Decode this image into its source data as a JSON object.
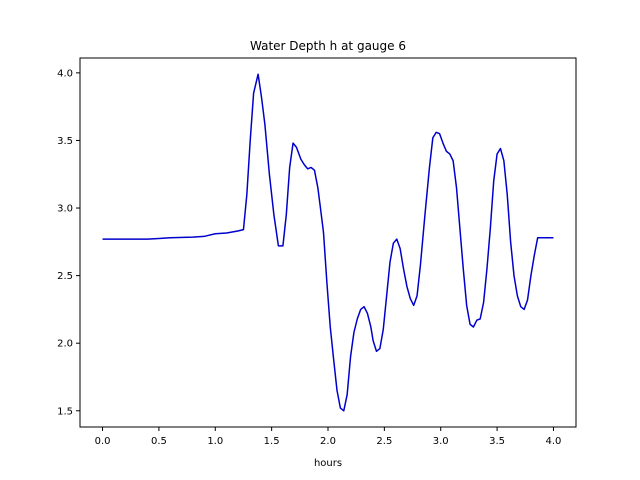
{
  "chart_data": {
    "type": "line",
    "title": "Water Depth h at gauge 6",
    "xlabel": "hours",
    "ylabel": "",
    "xlim": [
      -0.2,
      4.2
    ],
    "ylim": [
      1.38,
      4.11
    ],
    "xticks": [
      0.0,
      0.5,
      1.0,
      1.5,
      2.0,
      2.5,
      3.0,
      3.5,
      4.0
    ],
    "xtick_labels": [
      "0.0",
      "0.5",
      "1.0",
      "1.5",
      "2.0",
      "2.5",
      "3.0",
      "3.5",
      "4.0"
    ],
    "yticks": [
      1.5,
      2.0,
      2.5,
      3.0,
      3.5,
      4.0
    ],
    "ytick_labels": [
      "1.5",
      "2.0",
      "2.5",
      "3.0",
      "3.5",
      "4.0"
    ],
    "grid": false,
    "series": [
      {
        "color": "#0000cc",
        "x": [
          0.0,
          0.2,
          0.4,
          0.5,
          0.6,
          0.8,
          0.9,
          1.0,
          1.1,
          1.2,
          1.25,
          1.28,
          1.31,
          1.34,
          1.38,
          1.41,
          1.44,
          1.48,
          1.52,
          1.56,
          1.6,
          1.63,
          1.66,
          1.69,
          1.72,
          1.76,
          1.79,
          1.82,
          1.85,
          1.88,
          1.91,
          1.93,
          1.96,
          1.99,
          2.02,
          2.05,
          2.08,
          2.11,
          2.14,
          2.17,
          2.2,
          2.23,
          2.26,
          2.29,
          2.32,
          2.35,
          2.38,
          2.4,
          2.43,
          2.46,
          2.49,
          2.52,
          2.55,
          2.58,
          2.61,
          2.64,
          2.67,
          2.7,
          2.73,
          2.76,
          2.79,
          2.82,
          2.86,
          2.9,
          2.93,
          2.96,
          2.99,
          3.02,
          3.05,
          3.08,
          3.11,
          3.14,
          3.17,
          3.2,
          3.23,
          3.26,
          3.29,
          3.32,
          3.35,
          3.38,
          3.41,
          3.44,
          3.47,
          3.5,
          3.53,
          3.56,
          3.59,
          3.62,
          3.65,
          3.68,
          3.71,
          3.74,
          3.77,
          3.8,
          3.83,
          3.86,
          3.89,
          3.92,
          3.95,
          3.98,
          4.0
        ],
        "y": [
          2.77,
          2.77,
          2.77,
          2.775,
          2.78,
          2.785,
          2.79,
          2.81,
          2.815,
          2.83,
          2.84,
          3.1,
          3.5,
          3.85,
          3.99,
          3.82,
          3.62,
          3.25,
          2.95,
          2.72,
          2.72,
          2.95,
          3.3,
          3.48,
          3.45,
          3.36,
          3.32,
          3.29,
          3.3,
          3.28,
          3.15,
          3.02,
          2.82,
          2.45,
          2.12,
          1.88,
          1.65,
          1.52,
          1.5,
          1.62,
          1.9,
          2.08,
          2.18,
          2.25,
          2.27,
          2.22,
          2.12,
          2.02,
          1.94,
          1.96,
          2.1,
          2.35,
          2.6,
          2.74,
          2.77,
          2.7,
          2.55,
          2.42,
          2.33,
          2.28,
          2.35,
          2.58,
          2.95,
          3.3,
          3.52,
          3.56,
          3.55,
          3.48,
          3.42,
          3.4,
          3.35,
          3.15,
          2.85,
          2.55,
          2.28,
          2.14,
          2.12,
          2.17,
          2.18,
          2.3,
          2.55,
          2.85,
          3.2,
          3.4,
          3.44,
          3.35,
          3.1,
          2.75,
          2.5,
          2.35,
          2.27,
          2.25,
          2.32,
          2.5,
          2.65,
          2.78,
          2.78,
          2.78,
          2.78,
          2.78,
          2.78
        ]
      }
    ]
  }
}
